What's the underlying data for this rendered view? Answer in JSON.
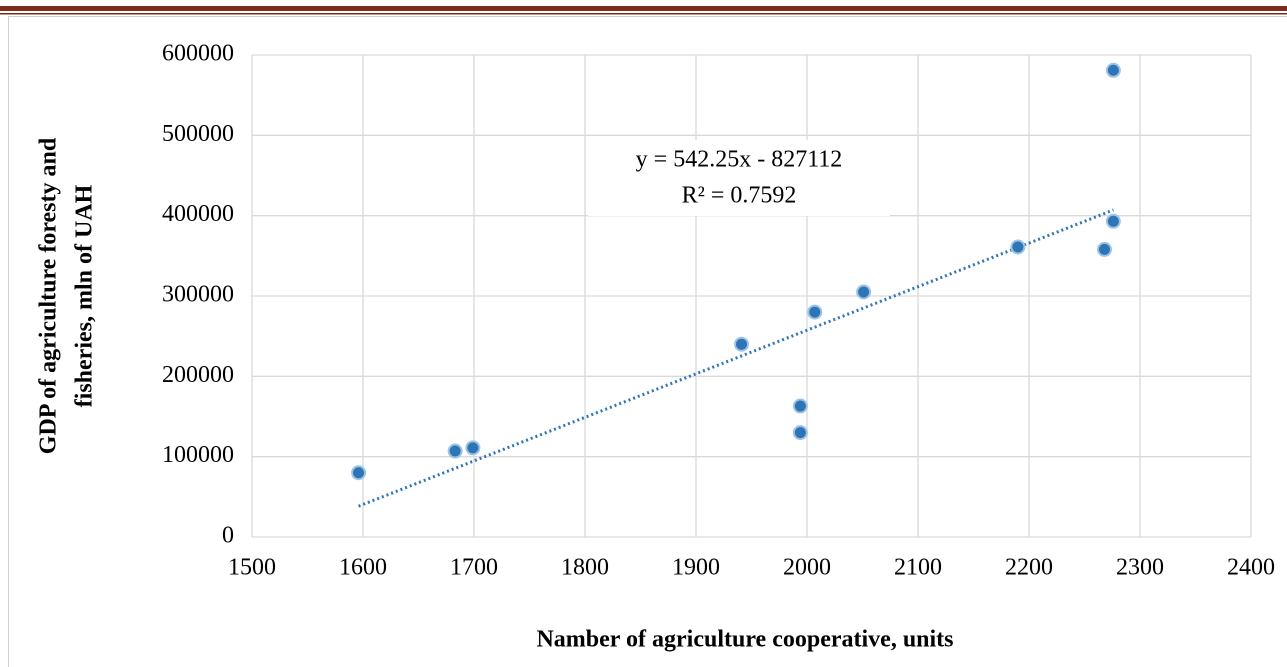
{
  "chart_data": {
    "type": "scatter",
    "x_label": "Namber of agriculture cooperative, units",
    "y_label": [
      "GDP of agriculture foresty and",
      "fisheries, mln of  UAH"
    ],
    "x": [
      1596,
      1683,
      1699,
      1941,
      1994,
      1994,
      2007,
      2051,
      2190,
      2268,
      2276,
      2276
    ],
    "values": [
      80000,
      107000,
      111000,
      240000,
      163000,
      130000,
      280000,
      305000,
      361000,
      358000,
      393000,
      581000
    ],
    "color": "#2e75b6",
    "xlim": [
      1500,
      2400
    ],
    "xticks": [
      1500,
      1600,
      1700,
      1800,
      1900,
      2000,
      2100,
      2200,
      2300,
      2400
    ],
    "ylim": [
      0,
      600000
    ],
    "yticks": [
      0,
      100000,
      200000,
      300000,
      400000,
      500000,
      600000
    ],
    "grid": true,
    "trendline": {
      "slope": 542.25,
      "intercept": -827112,
      "equation": "y = 542.25x - 827112",
      "r_squared": "R² = 0.7592"
    }
  }
}
